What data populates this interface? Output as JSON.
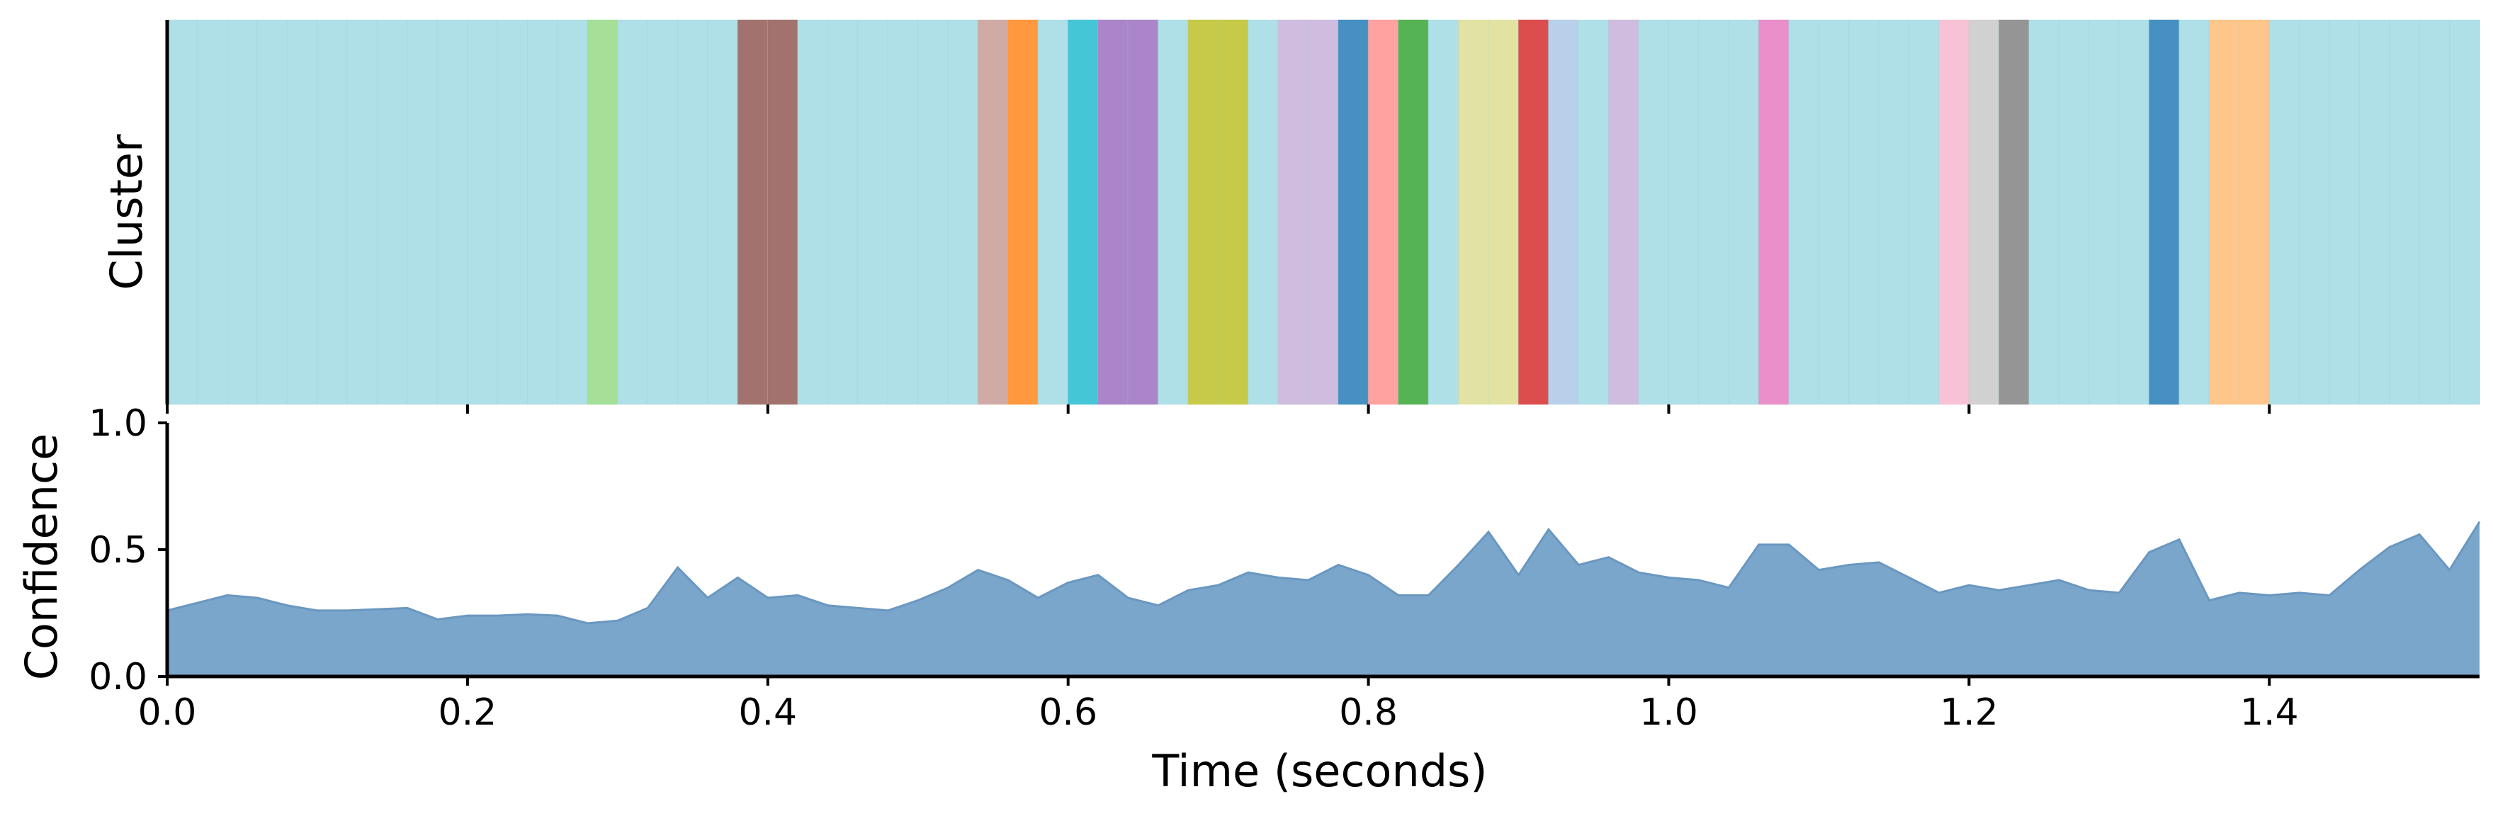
{
  "chart_data": [
    {
      "type": "heatmap",
      "panel": "cluster",
      "ylabel": "Cluster",
      "xlim": [
        0.0,
        1.54
      ],
      "frame_step": 0.02,
      "default_color": "#ABDDE6",
      "segments": [
        {
          "start": 0.28,
          "end": 0.3,
          "color": "#A0DD92"
        },
        {
          "start": 0.38,
          "end": 0.42,
          "color": "#9D6B66"
        },
        {
          "start": 0.54,
          "end": 0.56,
          "color": "#CDA7A0"
        },
        {
          "start": 0.56,
          "end": 0.58,
          "color": "#FF9335"
        },
        {
          "start": 0.6,
          "end": 0.62,
          "color": "#3BC3D5"
        },
        {
          "start": 0.62,
          "end": 0.66,
          "color": "#A57EC6"
        },
        {
          "start": 0.68,
          "end": 0.72,
          "color": "#C4C73E"
        },
        {
          "start": 0.74,
          "end": 0.78,
          "color": "#CCB8DC"
        },
        {
          "start": 0.78,
          "end": 0.8,
          "color": "#3C8ABF"
        },
        {
          "start": 0.8,
          "end": 0.82,
          "color": "#FF9D9B"
        },
        {
          "start": 0.82,
          "end": 0.84,
          "color": "#4CAF4B"
        },
        {
          "start": 0.86,
          "end": 0.9,
          "color": "#E0E19E"
        },
        {
          "start": 0.9,
          "end": 0.92,
          "color": "#DA4545"
        },
        {
          "start": 0.92,
          "end": 0.94,
          "color": "#B4CDE8"
        },
        {
          "start": 0.96,
          "end": 0.98,
          "color": "#CCB8DC"
        },
        {
          "start": 1.06,
          "end": 1.08,
          "color": "#E889C7"
        },
        {
          "start": 1.18,
          "end": 1.2,
          "color": "#F8BFD4"
        },
        {
          "start": 1.2,
          "end": 1.22,
          "color": "#CFCFCF"
        },
        {
          "start": 1.22,
          "end": 1.24,
          "color": "#8F8F8F"
        },
        {
          "start": 1.32,
          "end": 1.34,
          "color": "#3C8ABF"
        },
        {
          "start": 1.36,
          "end": 1.4,
          "color": "#FFC385"
        }
      ]
    },
    {
      "type": "area",
      "panel": "confidence",
      "xlabel": "Time (seconds)",
      "ylabel": "Confidence",
      "xlim": [
        0.0,
        1.54
      ],
      "ylim": [
        0.0,
        1.0
      ],
      "xticks": [
        0.0,
        0.2,
        0.4,
        0.6,
        0.8,
        1.0,
        1.2,
        1.4
      ],
      "xtick_labels": [
        "0.0",
        "0.2",
        "0.4",
        "0.6",
        "0.8",
        "1.0",
        "1.2",
        "1.4"
      ],
      "yticks": [
        0.0,
        0.5,
        1.0
      ],
      "ytick_labels": [
        "0.0",
        "0.5",
        "1.0"
      ],
      "fill_color": "#7BA6CB",
      "line_color": "#6A97C0",
      "x": [
        0.0,
        0.02,
        0.04,
        0.06,
        0.08,
        0.1,
        0.12,
        0.14,
        0.16,
        0.18,
        0.2,
        0.22,
        0.24,
        0.26,
        0.28,
        0.3,
        0.32,
        0.34,
        0.36,
        0.38,
        0.4,
        0.42,
        0.44,
        0.46,
        0.48,
        0.5,
        0.52,
        0.54,
        0.56,
        0.58,
        0.6,
        0.62,
        0.64,
        0.66,
        0.68,
        0.7,
        0.72,
        0.74,
        0.76,
        0.78,
        0.8,
        0.82,
        0.84,
        0.86,
        0.88,
        0.9,
        0.92,
        0.94,
        0.96,
        0.98,
        1.0,
        1.02,
        1.04,
        1.06,
        1.08,
        1.1,
        1.12,
        1.14,
        1.16,
        1.18,
        1.2,
        1.22,
        1.24,
        1.26,
        1.28,
        1.3,
        1.32,
        1.34,
        1.36,
        1.38,
        1.4,
        1.42,
        1.44,
        1.46,
        1.48,
        1.5,
        1.52,
        1.54
      ],
      "y": [
        0.26,
        0.29,
        0.32,
        0.31,
        0.28,
        0.26,
        0.26,
        0.265,
        0.27,
        0.225,
        0.24,
        0.24,
        0.245,
        0.24,
        0.21,
        0.22,
        0.27,
        0.43,
        0.31,
        0.39,
        0.31,
        0.32,
        0.28,
        0.27,
        0.26,
        0.3,
        0.35,
        0.42,
        0.38,
        0.31,
        0.37,
        0.4,
        0.31,
        0.28,
        0.34,
        0.36,
        0.41,
        0.39,
        0.38,
        0.44,
        0.4,
        0.32,
        0.32,
        0.44,
        0.57,
        0.4,
        0.58,
        0.44,
        0.47,
        0.41,
        0.39,
        0.38,
        0.35,
        0.52,
        0.52,
        0.42,
        0.44,
        0.45,
        0.39,
        0.33,
        0.36,
        0.34,
        0.36,
        0.38,
        0.34,
        0.33,
        0.49,
        0.54,
        0.3,
        0.33,
        0.32,
        0.33,
        0.32,
        0.42,
        0.51,
        0.56,
        0.42,
        0.61
      ]
    }
  ]
}
